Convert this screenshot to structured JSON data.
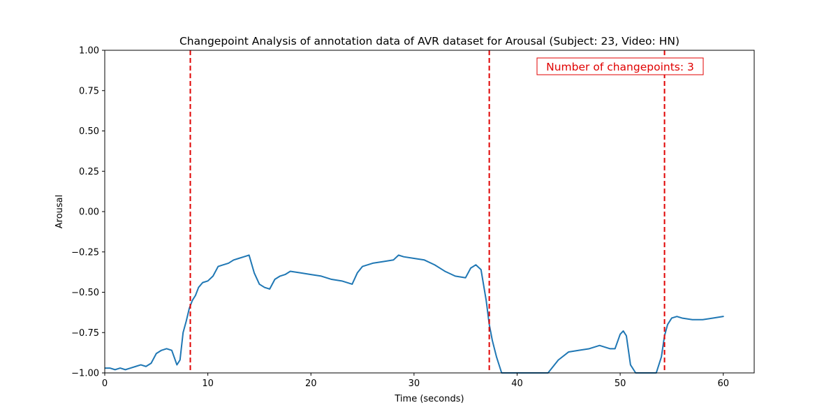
{
  "chart_data": {
    "type": "line",
    "title": "Changepoint Analysis of annotation data of AVR dataset for Arousal (Subject: 23, Video: HN)",
    "xlabel": "Time (seconds)",
    "ylabel": "Arousal",
    "xlim": [
      0,
      63
    ],
    "ylim": [
      -1.0,
      1.0
    ],
    "x_ticks": [
      0,
      10,
      20,
      30,
      40,
      50,
      60
    ],
    "x_tick_labels": [
      "0",
      "10",
      "20",
      "30",
      "40",
      "50",
      "60"
    ],
    "y_ticks": [
      -1.0,
      -0.75,
      -0.5,
      -0.25,
      0.0,
      0.25,
      0.5,
      0.75,
      1.0
    ],
    "y_tick_labels": [
      "−1.00",
      "−0.75",
      "−0.50",
      "−0.25",
      "0.00",
      "0.25",
      "0.50",
      "0.75",
      "1.00"
    ],
    "grid": false,
    "line_color": "#1f77b4",
    "changepoint_color": "#e00000",
    "changepoints": [
      8.3,
      37.3,
      54.3
    ],
    "annotation": "Number of changepoints: 3",
    "series": [
      {
        "x": [
          0,
          0.5,
          1,
          1.5,
          2,
          2.5,
          3,
          3.5,
          4,
          4.5,
          5,
          5.5,
          6,
          6.5,
          7,
          7.3,
          7.6,
          7.9,
          8.2,
          8.5,
          8.8,
          9.1,
          9.5,
          10,
          10.5,
          11,
          11.5,
          12,
          12.5,
          13,
          13.5,
          14,
          14.5,
          15,
          15.5,
          16,
          16.5,
          17,
          17.5,
          18,
          19,
          20,
          21,
          22,
          23,
          24,
          24.5,
          25,
          26,
          27,
          28,
          28.5,
          29,
          30,
          31,
          32,
          33,
          34,
          35,
          35.5,
          36,
          36.5,
          37,
          37.3,
          37.6,
          38,
          38.5,
          39,
          40,
          41,
          42,
          43,
          44,
          45,
          46,
          47,
          48,
          49,
          49.5,
          50,
          50.3,
          50.6,
          51,
          51.5,
          52,
          53,
          53.5,
          54,
          54.3,
          54.6,
          55,
          55.5,
          56,
          57,
          58,
          59,
          60
        ],
        "values": [
          -0.97,
          -0.97,
          -0.98,
          -0.97,
          -0.98,
          -0.97,
          -0.96,
          -0.95,
          -0.96,
          -0.94,
          -0.88,
          -0.86,
          -0.85,
          -0.86,
          -0.95,
          -0.92,
          -0.75,
          -0.68,
          -0.6,
          -0.55,
          -0.52,
          -0.47,
          -0.44,
          -0.43,
          -0.4,
          -0.34,
          -0.33,
          -0.32,
          -0.3,
          -0.29,
          -0.28,
          -0.27,
          -0.38,
          -0.45,
          -0.47,
          -0.48,
          -0.42,
          -0.4,
          -0.39,
          -0.37,
          -0.38,
          -0.39,
          -0.4,
          -0.42,
          -0.43,
          -0.45,
          -0.38,
          -0.34,
          -0.32,
          -0.31,
          -0.3,
          -0.27,
          -0.28,
          -0.29,
          -0.3,
          -0.33,
          -0.37,
          -0.4,
          -0.41,
          -0.35,
          -0.33,
          -0.36,
          -0.55,
          -0.7,
          -0.8,
          -0.9,
          -1.0,
          -1.0,
          -1.0,
          -1.0,
          -1.0,
          -1.0,
          -0.92,
          -0.87,
          -0.86,
          -0.85,
          -0.83,
          -0.85,
          -0.85,
          -0.76,
          -0.74,
          -0.77,
          -0.95,
          -1.0,
          -1.0,
          -1.0,
          -1.0,
          -0.9,
          -0.77,
          -0.7,
          -0.66,
          -0.65,
          -0.66,
          -0.67,
          -0.67,
          -0.66,
          -0.65
        ]
      }
    ]
  }
}
